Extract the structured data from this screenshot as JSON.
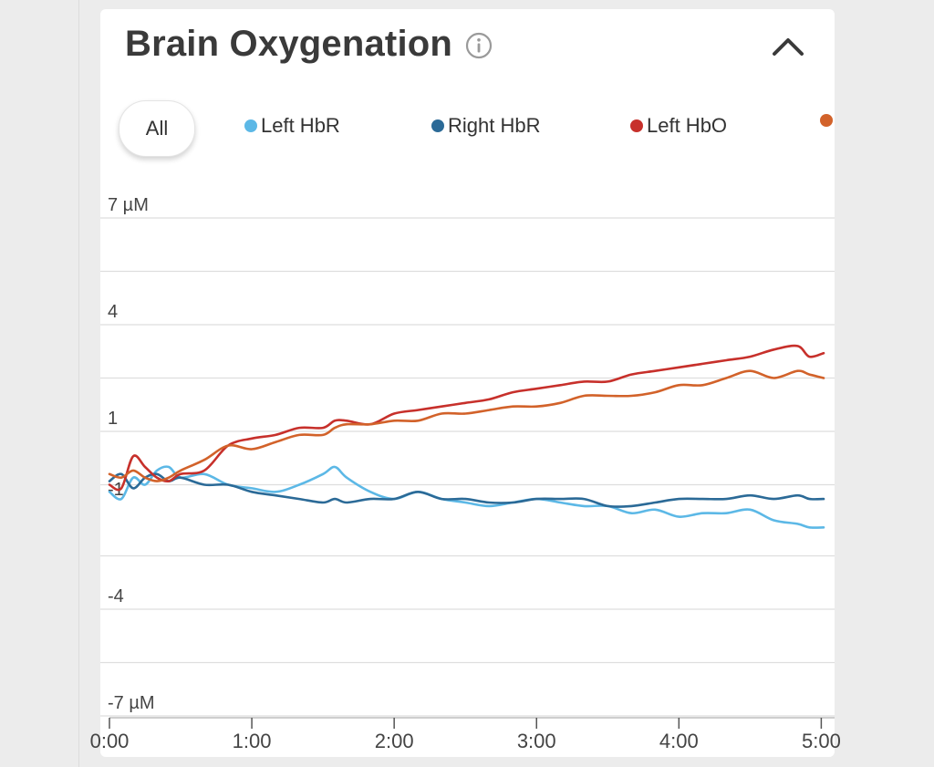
{
  "title": "Brain Oxygenation",
  "filter": {
    "all_label": "All"
  },
  "legend": [
    {
      "label": "Left HbR",
      "color": "#5cb8e6"
    },
    {
      "label": "Right HbR",
      "color": "#2b6a97"
    },
    {
      "label": "Left HbO",
      "color": "#c7302b"
    },
    {
      "label": "",
      "color": "#d2622a"
    }
  ],
  "chart_data": {
    "type": "line",
    "ylim": [
      -7,
      7
    ],
    "yticks": [
      7,
      5.5,
      4,
      2.5,
      1,
      -0.5,
      -1,
      -2.5,
      -4,
      -5.5,
      -7
    ],
    "ytick_labels": [
      {
        "value": 7,
        "label": "7 µM"
      },
      {
        "value": 4,
        "label": "4"
      },
      {
        "value": 1,
        "label": "1"
      },
      {
        "value": -1,
        "label": "-1"
      },
      {
        "value": -4,
        "label": "-4"
      },
      {
        "value": -7,
        "label": "-7 µM"
      }
    ],
    "gridlines": [
      7,
      5.5,
      4,
      2.5,
      1,
      -0.5,
      -2.5,
      -4,
      -5.5,
      -7
    ],
    "xlim": [
      0,
      301
    ],
    "xticks": [
      {
        "value": 0,
        "label": "0:00"
      },
      {
        "value": 60,
        "label": "1:00"
      },
      {
        "value": 120,
        "label": "2:00"
      },
      {
        "value": 180,
        "label": "3:00"
      },
      {
        "value": 240,
        "label": "4:00"
      },
      {
        "value": 300,
        "label": "5:00"
      }
    ],
    "series": [
      {
        "name": "Left HbR",
        "color": "#5cb8e6",
        "x": [
          0,
          5,
          10,
          15,
          20,
          25,
          30,
          40,
          50,
          60,
          70,
          80,
          90,
          95,
          100,
          110,
          120,
          130,
          140,
          150,
          160,
          170,
          180,
          190,
          200,
          210,
          220,
          230,
          240,
          250,
          260,
          270,
          280,
          290,
          295,
          301
        ],
        "values": [
          -0.7,
          -0.9,
          -0.3,
          -0.5,
          -0.1,
          0.0,
          -0.3,
          -0.2,
          -0.5,
          -0.6,
          -0.7,
          -0.5,
          -0.2,
          -0.0,
          -0.3,
          -0.7,
          -0.9,
          -0.7,
          -0.9,
          -1.0,
          -1.1,
          -1.0,
          -0.9,
          -1.0,
          -1.1,
          -1.1,
          -1.3,
          -1.2,
          -1.4,
          -1.3,
          -1.3,
          -1.2,
          -1.5,
          -1.6,
          -1.7,
          -1.7
        ]
      },
      {
        "name": "Right HbR",
        "color": "#2b6a97",
        "x": [
          0,
          5,
          10,
          15,
          20,
          25,
          30,
          40,
          50,
          60,
          70,
          80,
          90,
          95,
          100,
          110,
          120,
          130,
          140,
          150,
          160,
          170,
          180,
          190,
          200,
          210,
          220,
          230,
          240,
          250,
          260,
          270,
          280,
          290,
          295,
          301
        ],
        "values": [
          -0.4,
          -0.2,
          -0.6,
          -0.3,
          -0.2,
          -0.4,
          -0.3,
          -0.5,
          -0.5,
          -0.7,
          -0.8,
          -0.9,
          -1.0,
          -0.9,
          -1.0,
          -0.9,
          -0.9,
          -0.7,
          -0.9,
          -0.9,
          -1.0,
          -1.0,
          -0.9,
          -0.9,
          -0.9,
          -1.1,
          -1.1,
          -1.0,
          -0.9,
          -0.9,
          -0.9,
          -0.8,
          -0.9,
          -0.8,
          -0.9,
          -0.9
        ]
      },
      {
        "name": "Left HbO",
        "color": "#c7302b",
        "x": [
          0,
          5,
          10,
          15,
          20,
          25,
          30,
          40,
          50,
          60,
          70,
          80,
          90,
          95,
          100,
          110,
          120,
          130,
          140,
          150,
          160,
          170,
          180,
          190,
          200,
          210,
          220,
          230,
          240,
          250,
          260,
          270,
          280,
          290,
          295,
          301
        ],
        "values": [
          -0.5,
          -0.6,
          0.3,
          0.0,
          -0.3,
          -0.4,
          -0.2,
          -0.1,
          0.6,
          0.8,
          0.9,
          1.1,
          1.1,
          1.3,
          1.3,
          1.2,
          1.5,
          1.6,
          1.7,
          1.8,
          1.9,
          2.1,
          2.2,
          2.3,
          2.4,
          2.4,
          2.6,
          2.7,
          2.8,
          2.9,
          3.0,
          3.1,
          3.3,
          3.4,
          3.1,
          3.2
        ]
      },
      {
        "name": "",
        "color": "#d2622a",
        "x": [
          0,
          5,
          10,
          15,
          20,
          25,
          30,
          40,
          50,
          60,
          70,
          80,
          90,
          95,
          100,
          110,
          120,
          130,
          140,
          150,
          160,
          170,
          180,
          190,
          200,
          210,
          220,
          230,
          240,
          250,
          260,
          270,
          280,
          290,
          295,
          301
        ],
        "values": [
          -0.2,
          -0.3,
          -0.1,
          -0.3,
          -0.4,
          -0.3,
          -0.1,
          0.2,
          0.6,
          0.5,
          0.7,
          0.9,
          0.9,
          1.1,
          1.2,
          1.2,
          1.3,
          1.3,
          1.5,
          1.5,
          1.6,
          1.7,
          1.7,
          1.8,
          2.0,
          2.0,
          2.0,
          2.1,
          2.3,
          2.3,
          2.5,
          2.7,
          2.5,
          2.7,
          2.6,
          2.5
        ]
      }
    ]
  }
}
